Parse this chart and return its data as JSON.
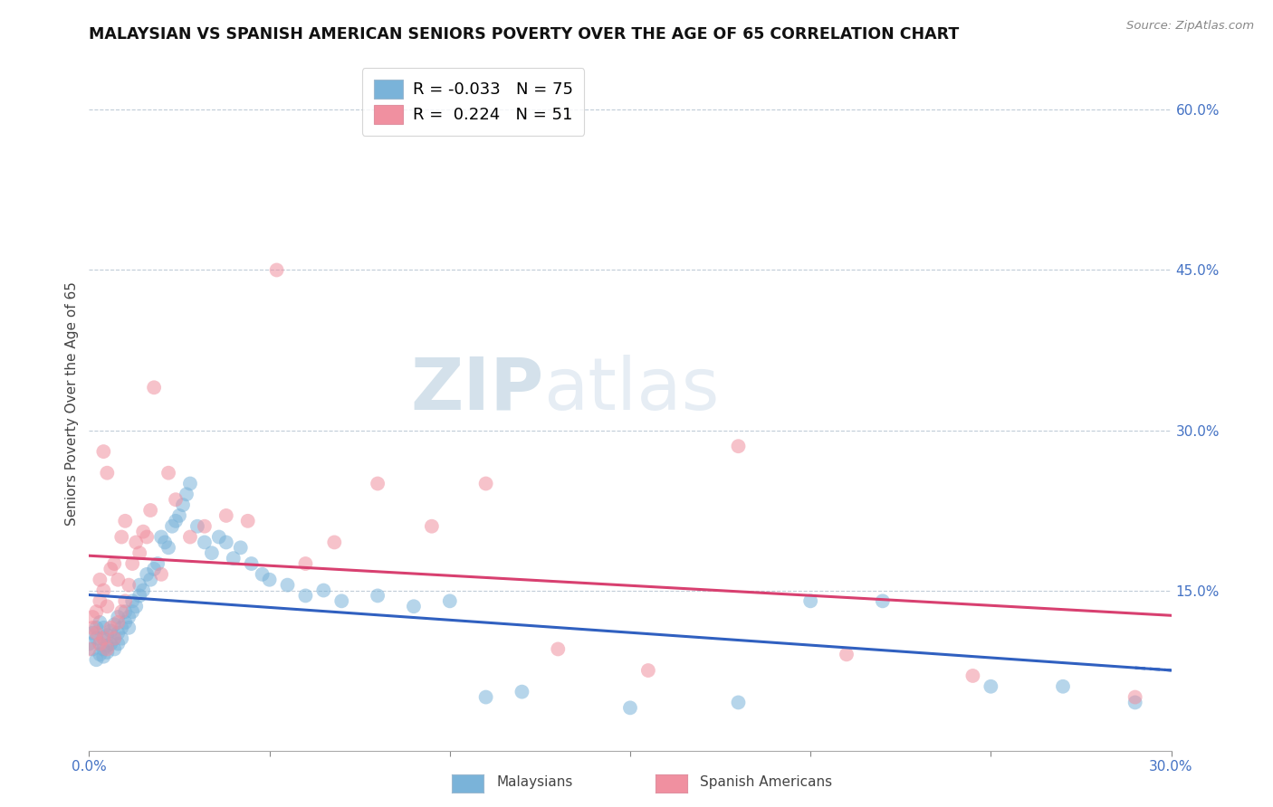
{
  "title": "MALAYSIAN VS SPANISH AMERICAN SENIORS POVERTY OVER THE AGE OF 65 CORRELATION CHART",
  "source": "Source: ZipAtlas.com",
  "ylabel": "Seniors Poverty Over the Age of 65",
  "right_yticks": [
    "60.0%",
    "45.0%",
    "30.0%",
    "15.0%"
  ],
  "right_ytick_vals": [
    0.6,
    0.45,
    0.3,
    0.15
  ],
  "watermark_zip": "ZIP",
  "watermark_atlas": "atlas",
  "legend_m_R": "-0.033",
  "legend_m_N": "75",
  "legend_s_R": "0.224",
  "legend_s_N": "51",
  "malaysians_x": [
    0.0,
    0.001,
    0.001,
    0.002,
    0.002,
    0.002,
    0.003,
    0.003,
    0.003,
    0.004,
    0.004,
    0.004,
    0.004,
    0.005,
    0.005,
    0.005,
    0.006,
    0.006,
    0.007,
    0.007,
    0.007,
    0.008,
    0.008,
    0.008,
    0.009,
    0.009,
    0.01,
    0.01,
    0.011,
    0.011,
    0.012,
    0.012,
    0.013,
    0.014,
    0.014,
    0.015,
    0.016,
    0.017,
    0.018,
    0.019,
    0.02,
    0.021,
    0.022,
    0.023,
    0.024,
    0.025,
    0.026,
    0.027,
    0.028,
    0.03,
    0.032,
    0.034,
    0.036,
    0.038,
    0.04,
    0.042,
    0.045,
    0.048,
    0.05,
    0.055,
    0.06,
    0.065,
    0.07,
    0.08,
    0.09,
    0.1,
    0.11,
    0.12,
    0.15,
    0.18,
    0.2,
    0.22,
    0.25,
    0.27,
    0.29
  ],
  "malaysians_y": [
    0.1,
    0.095,
    0.11,
    0.085,
    0.105,
    0.115,
    0.09,
    0.1,
    0.12,
    0.088,
    0.095,
    0.105,
    0.115,
    0.092,
    0.098,
    0.108,
    0.1,
    0.112,
    0.095,
    0.105,
    0.118,
    0.1,
    0.11,
    0.125,
    0.105,
    0.115,
    0.12,
    0.13,
    0.115,
    0.125,
    0.13,
    0.14,
    0.135,
    0.145,
    0.155,
    0.15,
    0.165,
    0.16,
    0.17,
    0.175,
    0.2,
    0.195,
    0.19,
    0.21,
    0.215,
    0.22,
    0.23,
    0.24,
    0.25,
    0.21,
    0.195,
    0.185,
    0.2,
    0.195,
    0.18,
    0.19,
    0.175,
    0.165,
    0.16,
    0.155,
    0.145,
    0.15,
    0.14,
    0.145,
    0.135,
    0.14,
    0.05,
    0.055,
    0.04,
    0.045,
    0.14,
    0.14,
    0.06,
    0.06,
    0.045
  ],
  "spanish_x": [
    0.0,
    0.001,
    0.001,
    0.002,
    0.002,
    0.003,
    0.003,
    0.003,
    0.004,
    0.004,
    0.004,
    0.005,
    0.005,
    0.005,
    0.006,
    0.006,
    0.007,
    0.007,
    0.008,
    0.008,
    0.009,
    0.009,
    0.01,
    0.01,
    0.011,
    0.012,
    0.013,
    0.014,
    0.015,
    0.016,
    0.017,
    0.018,
    0.02,
    0.022,
    0.024,
    0.028,
    0.032,
    0.038,
    0.044,
    0.052,
    0.06,
    0.068,
    0.08,
    0.095,
    0.11,
    0.13,
    0.155,
    0.18,
    0.21,
    0.245,
    0.29
  ],
  "spanish_y": [
    0.095,
    0.115,
    0.125,
    0.11,
    0.13,
    0.1,
    0.14,
    0.16,
    0.105,
    0.15,
    0.28,
    0.095,
    0.135,
    0.26,
    0.115,
    0.17,
    0.105,
    0.175,
    0.12,
    0.16,
    0.13,
    0.2,
    0.14,
    0.215,
    0.155,
    0.175,
    0.195,
    0.185,
    0.205,
    0.2,
    0.225,
    0.34,
    0.165,
    0.26,
    0.235,
    0.2,
    0.21,
    0.22,
    0.215,
    0.45,
    0.175,
    0.195,
    0.25,
    0.21,
    0.25,
    0.095,
    0.075,
    0.285,
    0.09,
    0.07,
    0.05
  ],
  "xlim": [
    0.0,
    0.3
  ],
  "ylim": [
    0.0,
    0.65
  ],
  "dot_size": 130,
  "dot_alpha": 0.55,
  "malaysian_color": "#7ab3d9",
  "spanish_color": "#f090a0",
  "trendline_malaysian_color": "#3060c0",
  "trendline_spanish_color": "#d84070",
  "background_color": "#ffffff",
  "grid_color": "#c0ccd8",
  "title_fontsize": 12.5,
  "axis_label_fontsize": 11,
  "tick_fontsize": 11,
  "right_tick_color": "#4472c4",
  "xtick_positions": [
    0.0,
    0.05,
    0.1,
    0.15,
    0.2,
    0.25,
    0.3
  ]
}
